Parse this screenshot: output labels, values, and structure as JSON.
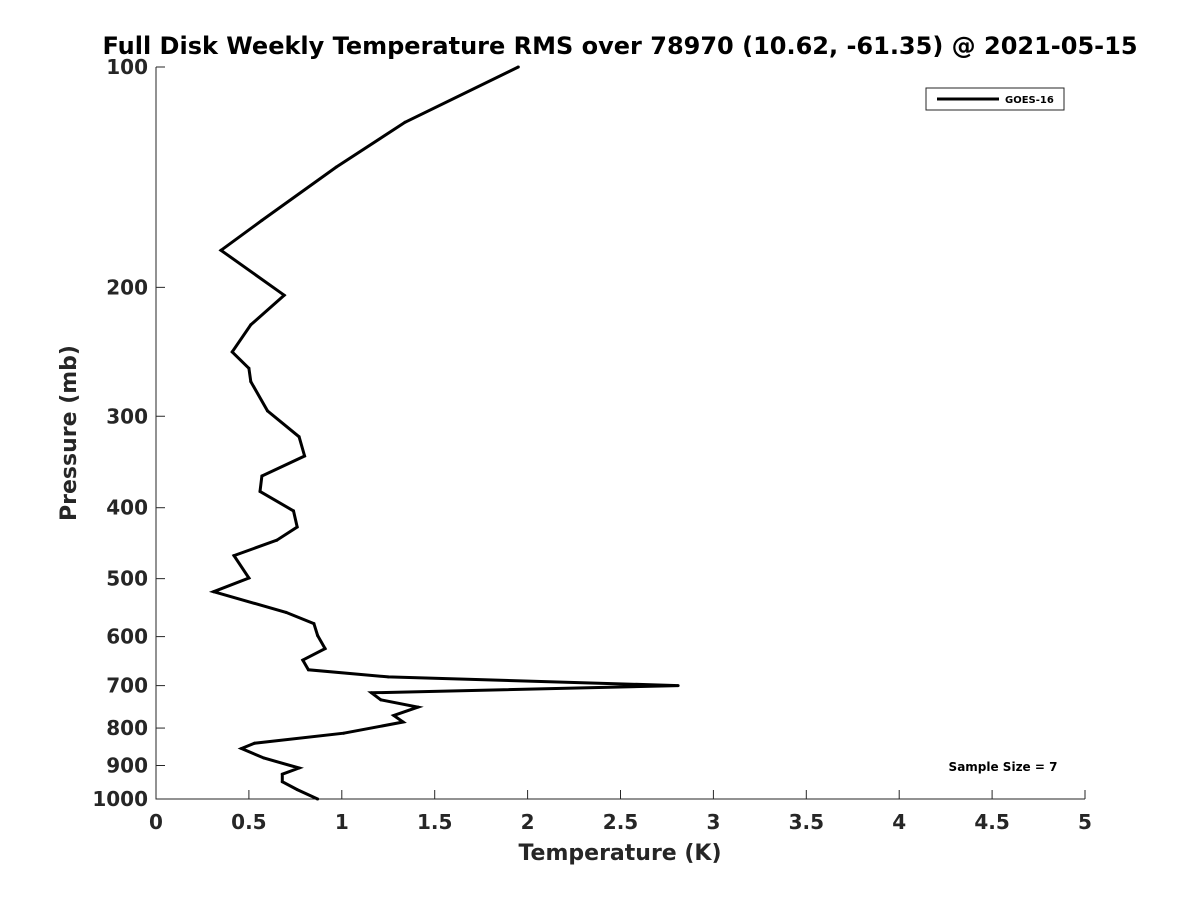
{
  "chart_data": {
    "type": "line",
    "title": "Full Disk Weekly Temperature RMS over 78970 (10.62, -61.35) @ 2021-05-15",
    "xlabel": "Temperature (K)",
    "ylabel": "Pressure (mb)",
    "xlim": [
      0,
      5
    ],
    "ylim": [
      1000,
      100
    ],
    "yscale": "log",
    "y_reversed": true,
    "grid": false,
    "x_ticks": [
      0,
      0.5,
      1,
      1.5,
      2,
      2.5,
      3,
      3.5,
      4,
      4.5,
      5
    ],
    "x_tick_labels": [
      "0",
      "0.5",
      "1",
      "1.5",
      "2",
      "2.5",
      "3",
      "3.5",
      "4",
      "4.5",
      "5"
    ],
    "y_ticks": [
      100,
      200,
      300,
      400,
      500,
      600,
      700,
      800,
      900,
      1000
    ],
    "y_tick_labels": [
      "100",
      "200",
      "300",
      "400",
      "500",
      "600",
      "700",
      "800",
      "900",
      "1000"
    ],
    "legend_position": "top-right",
    "annotation": "Sample Size = 7",
    "series": [
      {
        "name": "GOES-16",
        "color": "#000000",
        "x": [
          1.95,
          1.34,
          0.97,
          0.57,
          0.35,
          0.69,
          0.51,
          0.41,
          0.5,
          0.51,
          0.6,
          0.77,
          0.8,
          0.57,
          0.56,
          0.74,
          0.76,
          0.65,
          0.42,
          0.5,
          0.31,
          0.7,
          0.85,
          0.87,
          0.91,
          0.79,
          0.82,
          1.25,
          2.81,
          1.16,
          1.21,
          1.41,
          1.28,
          1.33,
          1.01,
          0.53,
          0.46,
          0.58,
          0.77,
          0.68,
          0.68,
          0.76,
          0.87
        ],
        "y": [
          100,
          119,
          137,
          162,
          178,
          205,
          225,
          245,
          258,
          269,
          295,
          320,
          340,
          362,
          380,
          404,
          425,
          443,
          465,
          499,
          521,
          556,
          576,
          598,
          623,
          646,
          666,
          681,
          700,
          716,
          732,
          749,
          769,
          785,
          813,
          839,
          853,
          879,
          907,
          925,
          947,
          971,
          1000
        ]
      }
    ]
  }
}
